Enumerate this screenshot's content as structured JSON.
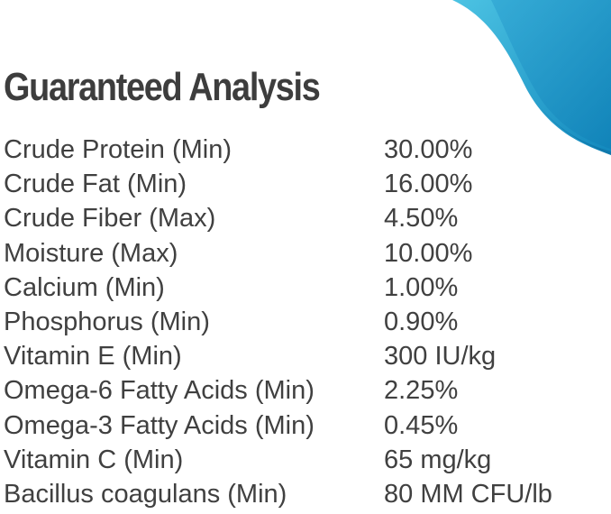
{
  "title": "Guaranteed Analysis",
  "accent_color": "#1a9fd0",
  "rows": [
    {
      "label": "Crude Protein (Min)",
      "value": "30.00%"
    },
    {
      "label": "Crude Fat (Min)",
      "value": "16.00%"
    },
    {
      "label": "Crude Fiber (Max)",
      "value": "4.50%"
    },
    {
      "label": "Moisture (Max)",
      "value": "10.00%"
    },
    {
      "label": "Calcium (Min)",
      "value": "1.00%"
    },
    {
      "label": "Phosphorus (Min)",
      "value": "0.90%"
    },
    {
      "label": "Vitamin E (Min)",
      "value": "300 IU/kg"
    },
    {
      "label": "Omega-6 Fatty Acids (Min)",
      "value": "2.25%"
    },
    {
      "label": "Omega-3 Fatty Acids (Min)",
      "value": "0.45%"
    },
    {
      "label": "Vitamin C (Min)",
      "value": "65 mg/kg"
    },
    {
      "label": "Bacillus coagulans (Min)",
      "value": "80 MM CFU/lb"
    }
  ]
}
